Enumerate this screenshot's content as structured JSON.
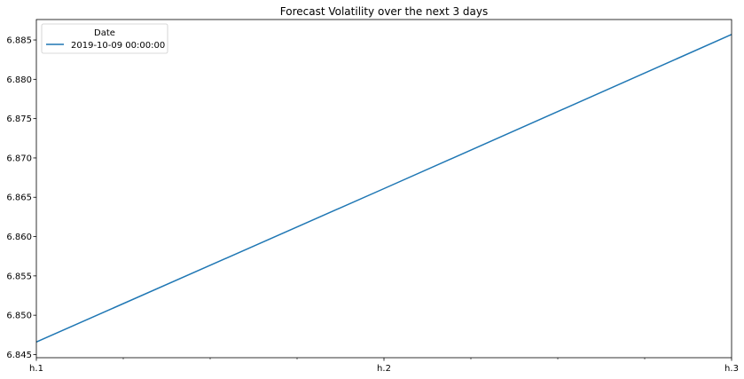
{
  "chart_data": {
    "type": "line",
    "title": "Forecast Volatility over the next 3 days",
    "xlabel": "",
    "ylabel": "",
    "categories": [
      "h.1",
      "h.2",
      "h.3"
    ],
    "series": [
      {
        "name": "2019-10-09 00:00:00",
        "values": [
          6.8466,
          6.8661,
          6.8857
        ],
        "color": "#1f77b4"
      }
    ],
    "ylim": [
      6.8446,
      6.8876
    ],
    "yticks": [
      "6.845",
      "6.850",
      "6.855",
      "6.860",
      "6.865",
      "6.870",
      "6.875",
      "6.880",
      "6.885"
    ],
    "minor_xticks": true,
    "grid": false,
    "legend": {
      "title": "Date",
      "position": "top-left"
    }
  }
}
